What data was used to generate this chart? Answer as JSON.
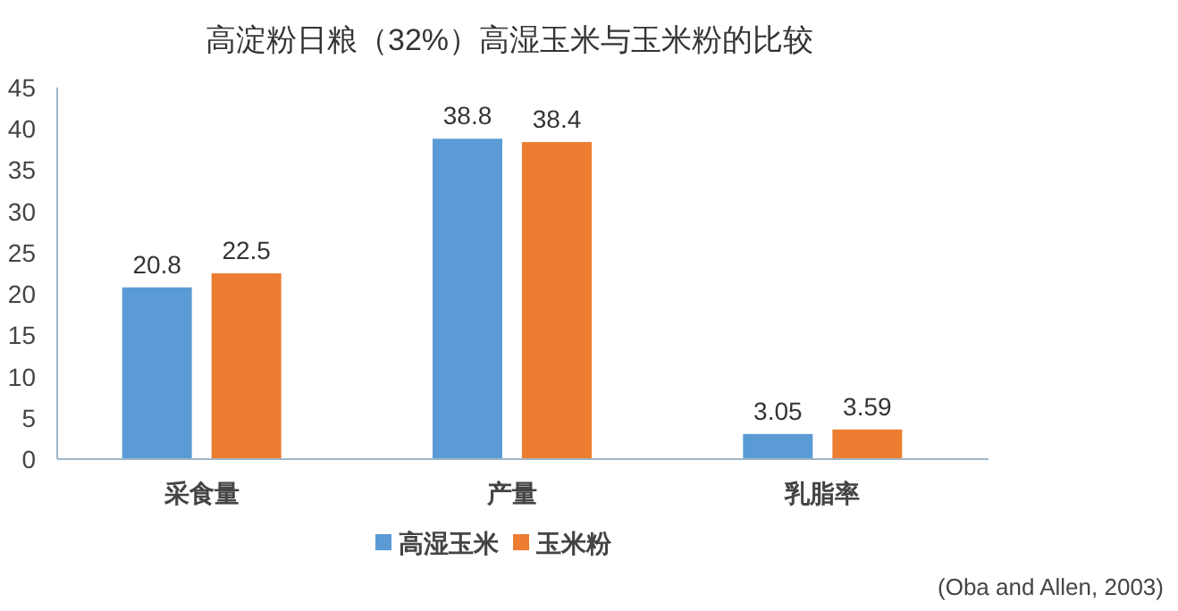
{
  "chart_data": {
    "type": "bar",
    "title": "高淀粉日粮（32%）高湿玉米与玉米粉的比较",
    "categories": [
      "采食量",
      "产量",
      "乳脂率"
    ],
    "series": [
      {
        "name": "高湿玉米",
        "color": "#5b9bd5",
        "values": [
          20.8,
          38.8,
          3.05
        ]
      },
      {
        "name": "玉米粉",
        "color": "#ed7d31",
        "values": [
          22.5,
          38.4,
          3.59
        ]
      }
    ],
    "ylim": [
      0,
      45
    ],
    "yticks": [
      0,
      5,
      10,
      15,
      20,
      25,
      30,
      35,
      40,
      45
    ],
    "data_labels": true,
    "legend": "bottom",
    "grid": false,
    "annotations": [
      "(Oba and Allen, 2003)"
    ]
  }
}
